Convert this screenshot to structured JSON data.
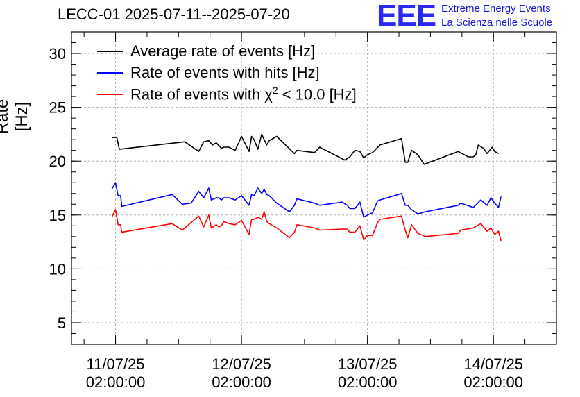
{
  "chart_data": {
    "type": "line",
    "title": "LECC-01 2025-07-11--2025-07-20",
    "ylabel": "Rate [Hz]",
    "xlabel": "",
    "ylim": [
      3,
      32
    ],
    "x_ticks": [
      {
        "x": 0,
        "date": "11/07/25",
        "time": "02:00:00"
      },
      {
        "x": 1,
        "date": "12/07/25",
        "time": "02:00:00"
      },
      {
        "x": 2,
        "date": "13/07/25",
        "time": "02:00:00"
      },
      {
        "x": 3,
        "date": "14/07/25",
        "time": "02:00:00"
      }
    ],
    "y_ticks": [
      5,
      10,
      15,
      20,
      25,
      30
    ],
    "grid": true,
    "legend_position": "top-left",
    "series": [
      {
        "name": "Average rate of events [Hz]",
        "color": "#000000",
        "x": [
          -0.03,
          0.01,
          0.03,
          0.55,
          0.66,
          0.7,
          0.74,
          0.77,
          0.8,
          0.84,
          0.86,
          0.9,
          0.95,
          1.0,
          1.06,
          1.08,
          1.1,
          1.13,
          1.16,
          1.18,
          1.2,
          1.22,
          1.28,
          1.42,
          1.44,
          1.58,
          1.62,
          1.82,
          1.86,
          1.9,
          1.94,
          1.97,
          2.0,
          2.04,
          2.1,
          2.27,
          2.3,
          2.32,
          2.35,
          2.4,
          2.45,
          2.72,
          2.8,
          2.84,
          2.86,
          2.88,
          2.92,
          2.95,
          2.99,
          3.01,
          3.04
        ],
        "y": [
          22.2,
          22.2,
          21.1,
          21.8,
          20.9,
          21.8,
          21.9,
          21.5,
          21.7,
          21.2,
          21.3,
          21.3,
          21.0,
          22.3,
          20.9,
          22.3,
          22.0,
          21.1,
          22.5,
          22.0,
          21.5,
          21.9,
          22.3,
          20.7,
          21.0,
          20.8,
          21.3,
          20.1,
          20.4,
          21.0,
          20.9,
          20.3,
          20.6,
          20.8,
          21.5,
          22.1,
          19.9,
          19.9,
          21.0,
          20.6,
          19.7,
          20.9,
          20.4,
          20.4,
          20.6,
          21.5,
          21.2,
          20.7,
          21.3,
          20.9,
          20.7
        ],
        "note_x_units": "days since 11/07/25 02:00:00"
      },
      {
        "name": "Rate of events with hits [Hz]",
        "color": "#0000ff",
        "x": [
          -0.03,
          0.0,
          0.02,
          0.04,
          0.05,
          0.45,
          0.53,
          0.6,
          0.66,
          0.7,
          0.74,
          0.76,
          0.8,
          0.82,
          0.84,
          0.86,
          0.9,
          0.95,
          1.0,
          1.06,
          1.08,
          1.1,
          1.13,
          1.16,
          1.18,
          1.2,
          1.22,
          1.28,
          1.38,
          1.42,
          1.44,
          1.58,
          1.62,
          1.8,
          1.84,
          1.86,
          1.9,
          1.94,
          1.97,
          2.0,
          2.04,
          2.08,
          2.1,
          2.27,
          2.3,
          2.32,
          2.35,
          2.4,
          2.46,
          2.72,
          2.74,
          2.84,
          2.9,
          2.95,
          2.98,
          3.01,
          3.04,
          3.06
        ],
        "y": [
          17.4,
          18.0,
          16.8,
          16.8,
          15.8,
          16.9,
          16.0,
          16.1,
          17.2,
          16.6,
          17.5,
          16.4,
          16.6,
          16.6,
          16.4,
          16.6,
          16.6,
          16.4,
          16.8,
          15.9,
          16.9,
          16.8,
          17.5,
          17.0,
          17.4,
          16.9,
          16.8,
          16.1,
          15.3,
          15.9,
          16.5,
          16.1,
          15.9,
          16.2,
          15.9,
          15.6,
          15.6,
          16.2,
          14.8,
          15.0,
          15.2,
          16.3,
          16.4,
          17.0,
          15.9,
          15.9,
          15.5,
          15.1,
          15.3,
          15.9,
          16.1,
          15.7,
          16.4,
          15.9,
          16.6,
          16.1,
          15.7,
          16.7
        ],
        "note_x_units": "days since 11/07/25 02:00:00"
      },
      {
        "name": "Rate of events with χ² < 10.0 [Hz]",
        "color": "#ff0000",
        "x": [
          -0.03,
          0.0,
          0.02,
          0.04,
          0.05,
          0.45,
          0.53,
          0.66,
          0.7,
          0.74,
          0.76,
          0.8,
          0.82,
          0.84,
          0.86,
          0.9,
          0.95,
          1.0,
          1.06,
          1.08,
          1.1,
          1.13,
          1.16,
          1.18,
          1.2,
          1.22,
          1.28,
          1.38,
          1.42,
          1.44,
          1.58,
          1.62,
          1.8,
          1.84,
          1.86,
          1.9,
          1.94,
          1.97,
          2.0,
          2.04,
          2.08,
          2.1,
          2.27,
          2.3,
          2.32,
          2.35,
          2.4,
          2.46,
          2.72,
          2.74,
          2.84,
          2.9,
          2.95,
          2.98,
          3.01,
          3.04,
          3.06
        ],
        "y": [
          14.8,
          15.5,
          14.1,
          14.1,
          13.4,
          14.2,
          13.6,
          14.9,
          13.9,
          15.0,
          13.8,
          14.1,
          13.9,
          14.0,
          14.4,
          14.2,
          14.1,
          14.5,
          13.2,
          14.6,
          14.6,
          14.8,
          14.6,
          15.3,
          14.4,
          14.2,
          13.8,
          12.9,
          13.4,
          14.1,
          13.8,
          13.6,
          13.7,
          13.7,
          13.4,
          13.4,
          14.0,
          12.7,
          13.1,
          13.1,
          14.3,
          14.6,
          14.9,
          13.6,
          12.9,
          14.1,
          13.3,
          13.0,
          13.3,
          13.6,
          13.8,
          14.2,
          13.5,
          13.8,
          13.2,
          13.5,
          12.6
        ],
        "note_x_units": "days since 11/07/25 02:00:00"
      }
    ]
  },
  "logo": {
    "mark": "EEE",
    "line1": "Extreme Energy Events",
    "line2": "La Scienza nelle Scuole"
  },
  "legend": {
    "item0_label": "Average rate of events [Hz]",
    "item1_label": "Rate of events with hits [Hz]",
    "item2_pre": "Rate of events with χ",
    "item2_sup": "2",
    "item2_post": " < 10.0 [Hz]"
  }
}
